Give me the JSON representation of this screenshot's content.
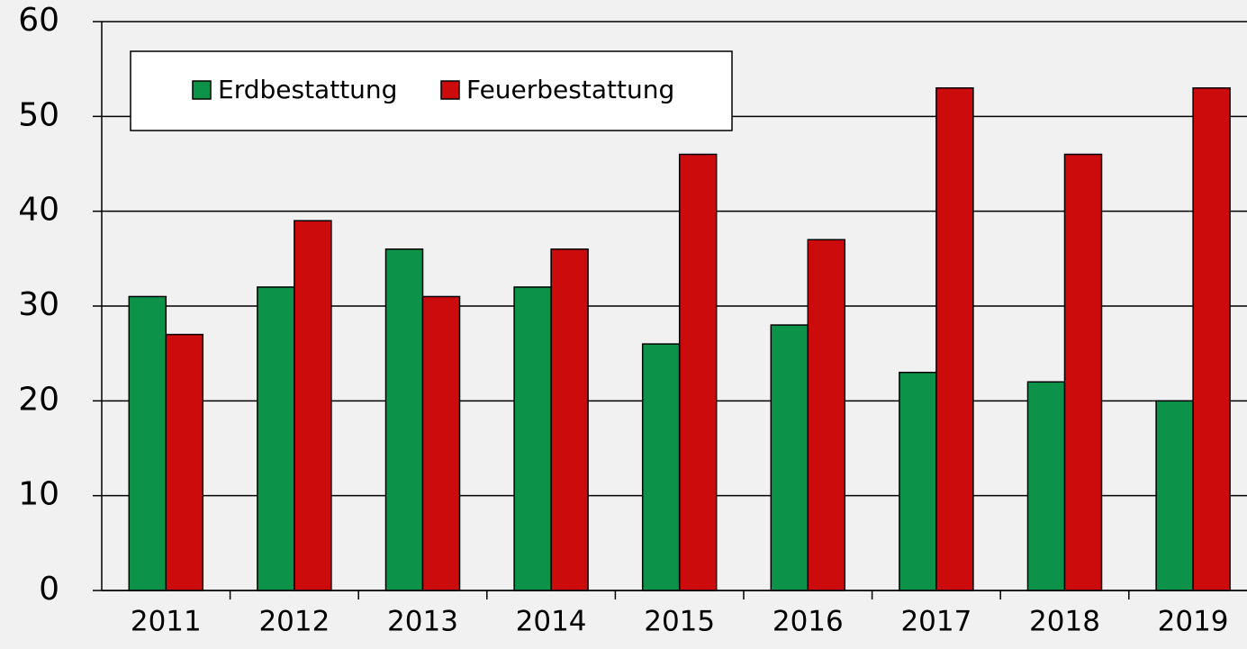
{
  "chart_data": {
    "type": "bar",
    "categories": [
      "2011",
      "2012",
      "2013",
      "2014",
      "2015",
      "2016",
      "2017",
      "2018",
      "2019"
    ],
    "series": [
      {
        "name": "Erdbestattung",
        "color": "#0d924a",
        "values": [
          31,
          32,
          36,
          32,
          26,
          28,
          23,
          22,
          20
        ]
      },
      {
        "name": "Feuerbestattung",
        "color": "#cc0c0c",
        "values": [
          27,
          39,
          31,
          36,
          46,
          37,
          53,
          46,
          53
        ]
      }
    ],
    "ylim": [
      0,
      60
    ],
    "yticks": [
      0,
      10,
      20,
      30,
      40,
      50,
      60
    ],
    "grid": true,
    "legend": "top-left"
  }
}
